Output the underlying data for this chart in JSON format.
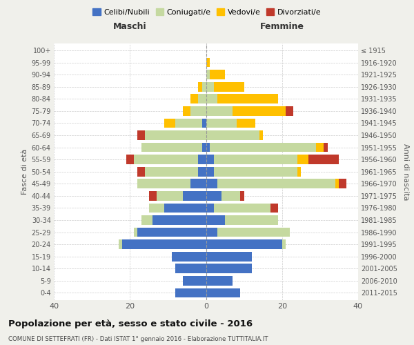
{
  "age_groups": [
    "0-4",
    "5-9",
    "10-14",
    "15-19",
    "20-24",
    "25-29",
    "30-34",
    "35-39",
    "40-44",
    "45-49",
    "50-54",
    "55-59",
    "60-64",
    "65-69",
    "70-74",
    "75-79",
    "80-84",
    "85-89",
    "90-94",
    "95-99",
    "100+"
  ],
  "birth_years": [
    "2011-2015",
    "2006-2010",
    "2001-2005",
    "1996-2000",
    "1991-1995",
    "1986-1990",
    "1981-1985",
    "1976-1980",
    "1971-1975",
    "1966-1970",
    "1961-1965",
    "1956-1960",
    "1951-1955",
    "1946-1950",
    "1941-1945",
    "1936-1940",
    "1931-1935",
    "1926-1930",
    "1921-1925",
    "1916-1920",
    "≤ 1915"
  ],
  "maschi": {
    "celibi": [
      8,
      6,
      8,
      9,
      22,
      18,
      14,
      11,
      6,
      4,
      2,
      2,
      1,
      0,
      1,
      0,
      0,
      0,
      0,
      0,
      0
    ],
    "coniugati": [
      0,
      0,
      0,
      0,
      1,
      1,
      3,
      4,
      7,
      14,
      14,
      17,
      16,
      16,
      7,
      4,
      2,
      1,
      0,
      0,
      0
    ],
    "vedovi": [
      0,
      0,
      0,
      0,
      0,
      0,
      0,
      0,
      0,
      0,
      0,
      0,
      0,
      0,
      3,
      2,
      2,
      1,
      0,
      0,
      0
    ],
    "divorziati": [
      0,
      0,
      0,
      0,
      0,
      0,
      0,
      0,
      2,
      0,
      2,
      2,
      0,
      2,
      0,
      0,
      0,
      0,
      0,
      0,
      0
    ]
  },
  "femmine": {
    "nubili": [
      9,
      7,
      12,
      12,
      20,
      3,
      5,
      2,
      4,
      3,
      2,
      2,
      1,
      0,
      0,
      0,
      0,
      0,
      0,
      0,
      0
    ],
    "coniugate": [
      0,
      0,
      0,
      0,
      1,
      19,
      14,
      15,
      5,
      31,
      22,
      22,
      28,
      14,
      8,
      7,
      3,
      2,
      1,
      0,
      0
    ],
    "vedove": [
      0,
      0,
      0,
      0,
      0,
      0,
      0,
      0,
      0,
      1,
      1,
      3,
      2,
      1,
      5,
      14,
      16,
      8,
      4,
      1,
      0
    ],
    "divorziate": [
      0,
      0,
      0,
      0,
      0,
      0,
      0,
      2,
      1,
      2,
      0,
      8,
      1,
      0,
      0,
      2,
      0,
      0,
      0,
      0,
      0
    ]
  },
  "colors": {
    "celibi": "#4472c4",
    "coniugati": "#c5d9a0",
    "vedovi": "#ffc000",
    "divorziati": "#c0392b"
  },
  "title": "Popolazione per età, sesso e stato civile - 2016",
  "subtitle": "COMUNE DI SETTEFRATI (FR) - Dati ISTAT 1° gennaio 2016 - Elaborazione TUTTITALIA.IT",
  "xlabel_left": "Maschi",
  "xlabel_right": "Femmine",
  "ylabel_left": "Fasce di età",
  "ylabel_right": "Anni di nascita",
  "xlim": 40,
  "bg_color": "#f0f0eb",
  "plot_bg": "#ffffff",
  "legend_labels": [
    "Celibi/Nubili",
    "Coniugati/e",
    "Vedovi/e",
    "Divorziati/e"
  ]
}
